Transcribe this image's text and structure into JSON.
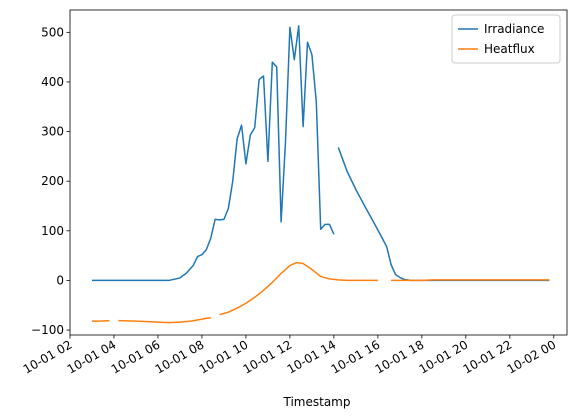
{
  "chart_data": {
    "type": "line",
    "title": "",
    "xlabel": "Timestamp",
    "ylabel": "",
    "x_range_hours": [
      2.0,
      24.6
    ],
    "xlim": [
      "10-01 02",
      "10-02 00"
    ],
    "ylim": [
      -110,
      545
    ],
    "grid": false,
    "legend": "top-right",
    "y_ticks": [
      -100,
      0,
      100,
      200,
      300,
      400,
      500
    ],
    "x_ticks": [
      "10-01 02",
      "10-01 04",
      "10-01 06",
      "10-01 08",
      "10-01 10",
      "10-01 12",
      "10-01 14",
      "10-01 16",
      "10-01 18",
      "10-01 20",
      "10-01 22",
      "10-02 00"
    ],
    "series": [
      {
        "name": "Irradiance",
        "color": "#1f77b4",
        "segments": [
          [
            [
              3.0,
              0
            ],
            [
              4.0,
              0
            ],
            [
              5.0,
              0
            ],
            [
              6.0,
              0
            ],
            [
              6.5,
              0
            ],
            [
              7.0,
              5
            ],
            [
              7.3,
              15
            ],
            [
              7.6,
              30
            ],
            [
              7.8,
              48
            ],
            [
              8.0,
              52
            ],
            [
              8.2,
              62
            ],
            [
              8.4,
              85
            ],
            [
              8.6,
              123
            ],
            [
              8.8,
              122
            ],
            [
              9.0,
              123
            ],
            [
              9.2,
              145
            ],
            [
              9.4,
              200
            ],
            [
              9.6,
              285
            ],
            [
              9.8,
              313
            ],
            [
              10.0,
              235
            ],
            [
              10.2,
              293
            ],
            [
              10.4,
              308
            ],
            [
              10.6,
              405
            ],
            [
              10.8,
              412
            ],
            [
              11.0,
              240
            ],
            [
              11.2,
              440
            ],
            [
              11.4,
              430
            ],
            [
              11.6,
              118
            ],
            [
              11.8,
              280
            ],
            [
              12.0,
              510
            ],
            [
              12.2,
              445
            ],
            [
              12.4,
              513
            ],
            [
              12.6,
              310
            ],
            [
              12.8,
              480
            ],
            [
              13.0,
              455
            ],
            [
              13.2,
              360
            ],
            [
              13.4,
              103
            ],
            [
              13.6,
              113
            ],
            [
              13.8,
              113
            ],
            [
              14.0,
              93
            ]
          ],
          [
            [
              14.2,
              268
            ],
            [
              14.6,
              220
            ],
            [
              15.0,
              183
            ],
            [
              15.4,
              150
            ],
            [
              15.8,
              118
            ],
            [
              16.2,
              85
            ],
            [
              16.4,
              68
            ],
            [
              16.6,
              32
            ],
            [
              16.8,
              12
            ],
            [
              17.0,
              6
            ],
            [
              17.2,
              2
            ],
            [
              17.5,
              0
            ],
            [
              18.0,
              0
            ],
            [
              19.0,
              0
            ],
            [
              20.0,
              0
            ],
            [
              21.0,
              0
            ],
            [
              22.0,
              0
            ],
            [
              23.0,
              0
            ],
            [
              23.8,
              0
            ]
          ]
        ]
      },
      {
        "name": "Heatflux",
        "color": "#ff7f0e",
        "segments": [
          [
            [
              3.0,
              -82
            ],
            [
              3.4,
              -82
            ],
            [
              3.8,
              -81
            ]
          ],
          [
            [
              4.2,
              -81
            ],
            [
              5.0,
              -82
            ],
            [
              6.0,
              -84
            ],
            [
              6.5,
              -85
            ],
            [
              7.0,
              -84
            ],
            [
              7.5,
              -82
            ],
            [
              8.0,
              -78
            ],
            [
              8.4,
              -75
            ]
          ],
          [
            [
              8.8,
              -69
            ],
            [
              9.2,
              -64
            ],
            [
              9.6,
              -56
            ],
            [
              10.0,
              -46
            ],
            [
              10.4,
              -34
            ],
            [
              10.8,
              -20
            ],
            [
              11.2,
              -4
            ],
            [
              11.6,
              14
            ],
            [
              12.0,
              30
            ],
            [
              12.3,
              36
            ],
            [
              12.6,
              34
            ],
            [
              13.0,
              22
            ],
            [
              13.4,
              8
            ],
            [
              13.8,
              3
            ],
            [
              14.2,
              1
            ],
            [
              14.6,
              0
            ],
            [
              15.0,
              0
            ],
            [
              15.4,
              0
            ],
            [
              16.0,
              0
            ]
          ],
          [
            [
              16.6,
              0
            ],
            [
              17.0,
              0
            ],
            [
              17.5,
              0
            ],
            [
              18.0,
              0
            ],
            [
              18.5,
              1
            ],
            [
              19.0,
              1
            ],
            [
              20.0,
              1
            ],
            [
              21.0,
              1
            ],
            [
              22.0,
              1
            ],
            [
              23.0,
              1
            ],
            [
              23.8,
              1
            ]
          ]
        ]
      }
    ]
  }
}
